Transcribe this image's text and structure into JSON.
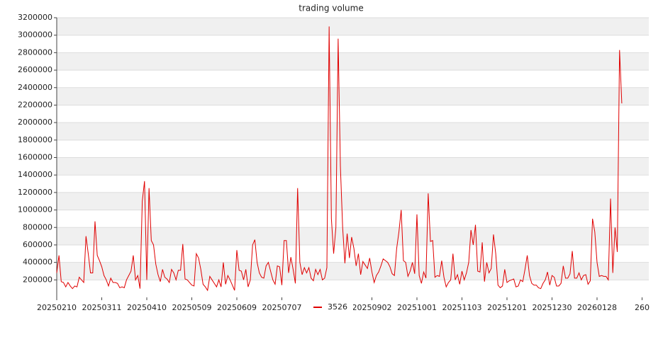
{
  "chart_data": {
    "type": "line",
    "title": "trading volume",
    "series": [
      {
        "name": "3526",
        "color": "#e00000",
        "values": [
          280000,
          480000,
          180000,
          170000,
          120000,
          170000,
          130000,
          100000,
          130000,
          120000,
          230000,
          200000,
          170000,
          700000,
          500000,
          280000,
          280000,
          870000,
          480000,
          420000,
          350000,
          250000,
          200000,
          130000,
          220000,
          170000,
          170000,
          160000,
          110000,
          120000,
          110000,
          200000,
          250000,
          300000,
          480000,
          200000,
          250000,
          100000,
          1100000,
          1330000,
          200000,
          1250000,
          650000,
          600000,
          380000,
          260000,
          180000,
          320000,
          230000,
          210000,
          170000,
          320000,
          280000,
          200000,
          310000,
          310000,
          610000,
          210000,
          200000,
          170000,
          140000,
          130000,
          500000,
          450000,
          320000,
          150000,
          120000,
          80000,
          240000,
          200000,
          160000,
          120000,
          200000,
          120000,
          400000,
          150000,
          250000,
          200000,
          140000,
          80000,
          540000,
          310000,
          300000,
          200000,
          320000,
          120000,
          200000,
          600000,
          660000,
          400000,
          280000,
          230000,
          220000,
          360000,
          400000,
          300000,
          200000,
          150000,
          360000,
          350000,
          140000,
          650000,
          650000,
          280000,
          460000,
          320000,
          160000,
          1250000,
          400000,
          260000,
          340000,
          280000,
          340000,
          220000,
          190000,
          320000,
          260000,
          320000,
          200000,
          220000,
          340000,
          3100000,
          900000,
          500000,
          800000,
          2960000,
          1500000,
          800000,
          390000,
          730000,
          450000,
          690000,
          560000,
          360000,
          500000,
          260000,
          410000,
          370000,
          330000,
          450000,
          290000,
          170000,
          250000,
          290000,
          360000,
          440000,
          420000,
          400000,
          350000,
          270000,
          250000,
          560000,
          750000,
          1000000,
          420000,
          400000,
          240000,
          300000,
          400000,
          270000,
          950000,
          250000,
          160000,
          290000,
          220000,
          1190000,
          640000,
          650000,
          230000,
          250000,
          240000,
          420000,
          230000,
          120000,
          170000,
          200000,
          500000,
          200000,
          260000,
          150000,
          300000,
          200000,
          280000,
          400000,
          770000,
          600000,
          830000,
          300000,
          290000,
          630000,
          180000,
          400000,
          280000,
          330000,
          720000,
          500000,
          140000,
          110000,
          130000,
          320000,
          170000,
          190000,
          200000,
          210000,
          120000,
          130000,
          200000,
          180000,
          320000,
          480000,
          250000,
          160000,
          140000,
          140000,
          110000,
          100000,
          160000,
          200000,
          290000,
          140000,
          250000,
          230000,
          130000,
          130000,
          160000,
          360000,
          220000,
          220000,
          270000,
          530000,
          220000,
          220000,
          280000,
          200000,
          250000,
          260000,
          150000,
          190000,
          900000,
          750000,
          400000,
          240000,
          250000,
          240000,
          240000,
          200000,
          1130000,
          280000,
          800000,
          520000,
          2830000,
          2220000
        ]
      }
    ],
    "xlim": [
      0,
      263
    ],
    "xticks": [
      {
        "value": 0,
        "label": "20250210"
      },
      {
        "value": 20,
        "label": "20250311"
      },
      {
        "value": 40,
        "label": "20250410"
      },
      {
        "value": 60,
        "label": "20250509"
      },
      {
        "value": 80,
        "label": "20250609"
      },
      {
        "value": 100,
        "label": "20250707"
      },
      {
        "value": 140,
        "label": "20250902"
      },
      {
        "value": 160,
        "label": "20251001"
      },
      {
        "value": 180,
        "label": "20251103"
      },
      {
        "value": 200,
        "label": "20251201"
      },
      {
        "value": 220,
        "label": "20251230"
      },
      {
        "value": 240,
        "label": "20260128"
      },
      {
        "value": 260,
        "label": "260"
      }
    ],
    "ylim": [
      0,
      3200000
    ],
    "yticks": [
      200000,
      400000,
      600000,
      800000,
      1000000,
      1200000,
      1400000,
      1600000,
      1800000,
      2000000,
      2200000,
      2400000,
      2600000,
      2800000,
      3000000,
      3200000
    ],
    "grid": true,
    "band_color": "#f0f0f0",
    "legend": "bottom"
  }
}
